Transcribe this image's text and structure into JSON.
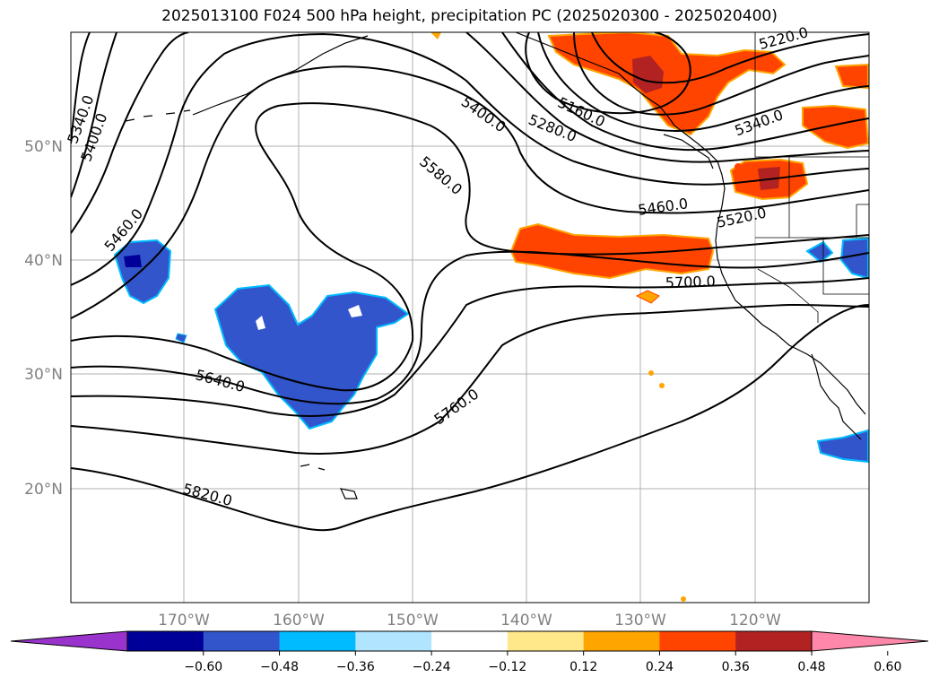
{
  "title": "2025013100 F024 500 hPa height, precipitation PC (2025020300 - 2025020400)",
  "latitudes": [
    {
      "label": "50°N",
      "value": 50
    },
    {
      "label": "40°N",
      "value": 40
    },
    {
      "label": "30°N",
      "value": 30
    },
    {
      "label": "20°N",
      "value": 20
    }
  ],
  "longitudes": [
    {
      "label": "170°W",
      "value": -170
    },
    {
      "label": "160°W",
      "value": -160
    },
    {
      "label": "150°W",
      "value": -150
    },
    {
      "label": "140°W",
      "value": -140
    },
    {
      "label": "130°W",
      "value": -130
    },
    {
      "label": "120°W",
      "value": -120
    }
  ],
  "contour_labels": [
    "5340.0",
    "5400.0",
    "5460.0",
    "5580.0",
    "5400.0",
    "5160.0",
    "5280.0",
    "5220.0",
    "5340.0",
    "5460.0",
    "5520.0",
    "5700.0",
    "5640.0",
    "5760.0",
    "5820.0"
  ],
  "colorbar": {
    "colors": [
      "#9933cc",
      "#000099",
      "#3355cc",
      "#00bbff",
      "#b0e4ff",
      "#ffffff",
      "#ffe88a",
      "#ffa500",
      "#ff4400",
      "#b22222",
      "#ff88aa"
    ],
    "labels": [
      "−0.60",
      "−0.48",
      "−0.36",
      "−0.24",
      "−0.12",
      "0.12",
      "0.24",
      "0.36",
      "0.48",
      "0.60"
    ]
  },
  "precip_colors": {
    "high": "#ff4400",
    "higher": "#b22222",
    "mid": "#ffa500",
    "low": "#ffe88a",
    "neg_dark": "#000099",
    "neg": "#3355cc",
    "neg_light": "#00bbff",
    "neg_faint": "#b0e4ff"
  }
}
